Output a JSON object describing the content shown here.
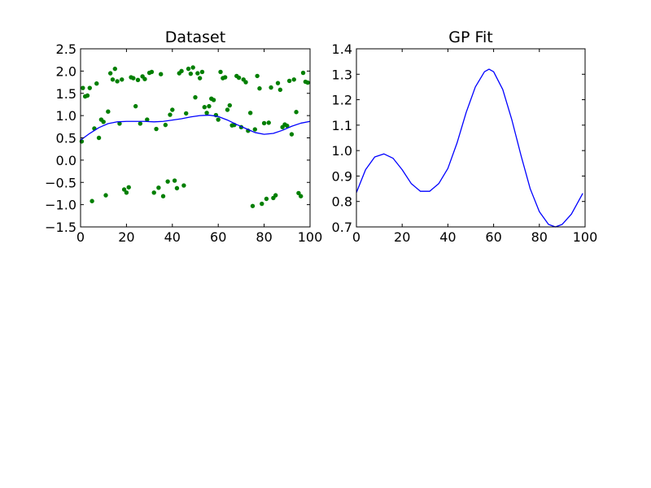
{
  "figure": {
    "background": "#ffffff"
  },
  "chart_data": [
    {
      "type": "scatter",
      "title": "Dataset",
      "xlabel": "",
      "ylabel": "",
      "xlim": [
        0,
        100
      ],
      "ylim": [
        -1.5,
        2.5
      ],
      "xticks": [
        0,
        20,
        40,
        60,
        80,
        100
      ],
      "xtick_labels": [
        "0",
        "20",
        "40",
        "60",
        "80",
        "100"
      ],
      "yticks": [
        -1.5,
        -1.0,
        -0.5,
        0.0,
        0.5,
        1.0,
        1.5,
        2.0,
        2.5
      ],
      "ytick_labels": [
        "−1.5",
        "−1.0",
        "−0.5",
        "0.0",
        "0.5",
        "1.0",
        "1.5",
        "2.0",
        "2.5"
      ],
      "grid": false,
      "scatter_color": "#007f00",
      "line_color": "#0000ff",
      "points": [
        [
          0.5,
          0.42
        ],
        [
          1,
          1.62
        ],
        [
          2,
          1.43
        ],
        [
          3,
          1.45
        ],
        [
          4,
          1.62
        ],
        [
          5,
          -0.92
        ],
        [
          6,
          0.71
        ],
        [
          7,
          1.72
        ],
        [
          8,
          0.5
        ],
        [
          9,
          0.91
        ],
        [
          10,
          0.86
        ],
        [
          11,
          -0.79
        ],
        [
          12,
          1.09
        ],
        [
          13,
          1.95
        ],
        [
          14,
          1.81
        ],
        [
          15,
          2.05
        ],
        [
          16,
          1.77
        ],
        [
          17,
          0.82
        ],
        [
          18,
          1.81
        ],
        [
          19,
          -0.66
        ],
        [
          20,
          -0.73
        ],
        [
          21,
          -0.61
        ],
        [
          22,
          1.86
        ],
        [
          23,
          1.84
        ],
        [
          24,
          1.21
        ],
        [
          25,
          1.8
        ],
        [
          26,
          0.82
        ],
        [
          27,
          1.88
        ],
        [
          28,
          1.82
        ],
        [
          29,
          0.91
        ],
        [
          30,
          1.96
        ],
        [
          31,
          1.98
        ],
        [
          32,
          -0.73
        ],
        [
          33,
          0.7
        ],
        [
          34,
          -0.62
        ],
        [
          35,
          1.93
        ],
        [
          36,
          -0.81
        ],
        [
          37,
          0.79
        ],
        [
          38,
          -0.48
        ],
        [
          39,
          1.02
        ],
        [
          40,
          1.13
        ],
        [
          41,
          -0.46
        ],
        [
          42,
          -0.63
        ],
        [
          43,
          1.95
        ],
        [
          44,
          2.0
        ],
        [
          45,
          -0.57
        ],
        [
          46,
          1.05
        ],
        [
          47,
          2.05
        ],
        [
          48,
          1.94
        ],
        [
          49,
          2.08
        ],
        [
          50,
          1.41
        ],
        [
          51,
          1.95
        ],
        [
          52,
          1.84
        ],
        [
          53,
          1.98
        ],
        [
          54,
          1.19
        ],
        [
          55,
          1.06
        ],
        [
          56,
          1.21
        ],
        [
          57,
          1.38
        ],
        [
          58,
          1.35
        ],
        [
          59,
          1.01
        ],
        [
          60,
          0.91
        ],
        [
          61,
          1.98
        ],
        [
          62,
          1.84
        ],
        [
          63,
          1.86
        ],
        [
          64,
          1.13
        ],
        [
          65,
          1.23
        ],
        [
          66,
          0.78
        ],
        [
          67,
          0.79
        ],
        [
          68,
          1.89
        ],
        [
          69,
          1.85
        ],
        [
          70,
          0.74
        ],
        [
          71,
          1.81
        ],
        [
          72,
          1.75
        ],
        [
          73,
          0.66
        ],
        [
          74,
          1.06
        ],
        [
          75,
          -1.03
        ],
        [
          76,
          0.69
        ],
        [
          77,
          1.89
        ],
        [
          78,
          1.61
        ],
        [
          79,
          -0.98
        ],
        [
          80,
          0.83
        ],
        [
          81,
          -0.87
        ],
        [
          82,
          0.84
        ],
        [
          83,
          1.63
        ],
        [
          84,
          -0.85
        ],
        [
          85,
          -0.79
        ],
        [
          86,
          1.73
        ],
        [
          87,
          1.58
        ],
        [
          88,
          0.74
        ],
        [
          89,
          0.8
        ],
        [
          90,
          0.77
        ],
        [
          91,
          1.78
        ],
        [
          92,
          0.58
        ],
        [
          93,
          1.81
        ],
        [
          94,
          1.08
        ],
        [
          95,
          -0.74
        ],
        [
          96,
          -0.81
        ],
        [
          97,
          1.96
        ],
        [
          98,
          1.76
        ],
        [
          99,
          1.74
        ]
      ],
      "line_x": [
        0,
        4,
        8,
        12,
        16,
        20,
        24,
        28,
        32,
        36,
        40,
        44,
        48,
        52,
        56,
        60,
        64,
        68,
        72,
        76,
        80,
        84,
        88,
        92,
        96,
        100
      ],
      "line_y": [
        0.45,
        0.6,
        0.73,
        0.82,
        0.86,
        0.87,
        0.87,
        0.87,
        0.86,
        0.87,
        0.9,
        0.93,
        0.97,
        1.0,
        1.01,
        0.98,
        0.9,
        0.8,
        0.71,
        0.62,
        0.58,
        0.6,
        0.67,
        0.76,
        0.83,
        0.87
      ]
    },
    {
      "type": "line",
      "title": "GP Fit",
      "xlabel": "",
      "ylabel": "",
      "xlim": [
        0,
        100
      ],
      "ylim": [
        0.7,
        1.4
      ],
      "xticks": [
        0,
        20,
        40,
        60,
        80,
        100
      ],
      "xtick_labels": [
        "0",
        "20",
        "40",
        "60",
        "80",
        "100"
      ],
      "yticks": [
        0.7,
        0.8,
        0.9,
        1.0,
        1.1,
        1.2,
        1.3,
        1.4
      ],
      "ytick_labels": [
        "0.7",
        "0.8",
        "0.9",
        "1.0",
        "1.1",
        "1.2",
        "1.3",
        "1.4"
      ],
      "grid": false,
      "line_color": "#0000ff",
      "x": [
        0,
        4,
        8,
        12,
        16,
        20,
        24,
        28,
        32,
        36,
        40,
        44,
        48,
        52,
        56,
        58,
        60,
        64,
        68,
        72,
        76,
        80,
        84,
        87,
        90,
        94,
        99
      ],
      "y": [
        0.835,
        0.925,
        0.975,
        0.987,
        0.97,
        0.925,
        0.87,
        0.84,
        0.84,
        0.87,
        0.93,
        1.03,
        1.15,
        1.25,
        1.31,
        1.32,
        1.31,
        1.24,
        1.12,
        0.98,
        0.85,
        0.76,
        0.71,
        0.7,
        0.71,
        0.75,
        0.832
      ]
    }
  ]
}
